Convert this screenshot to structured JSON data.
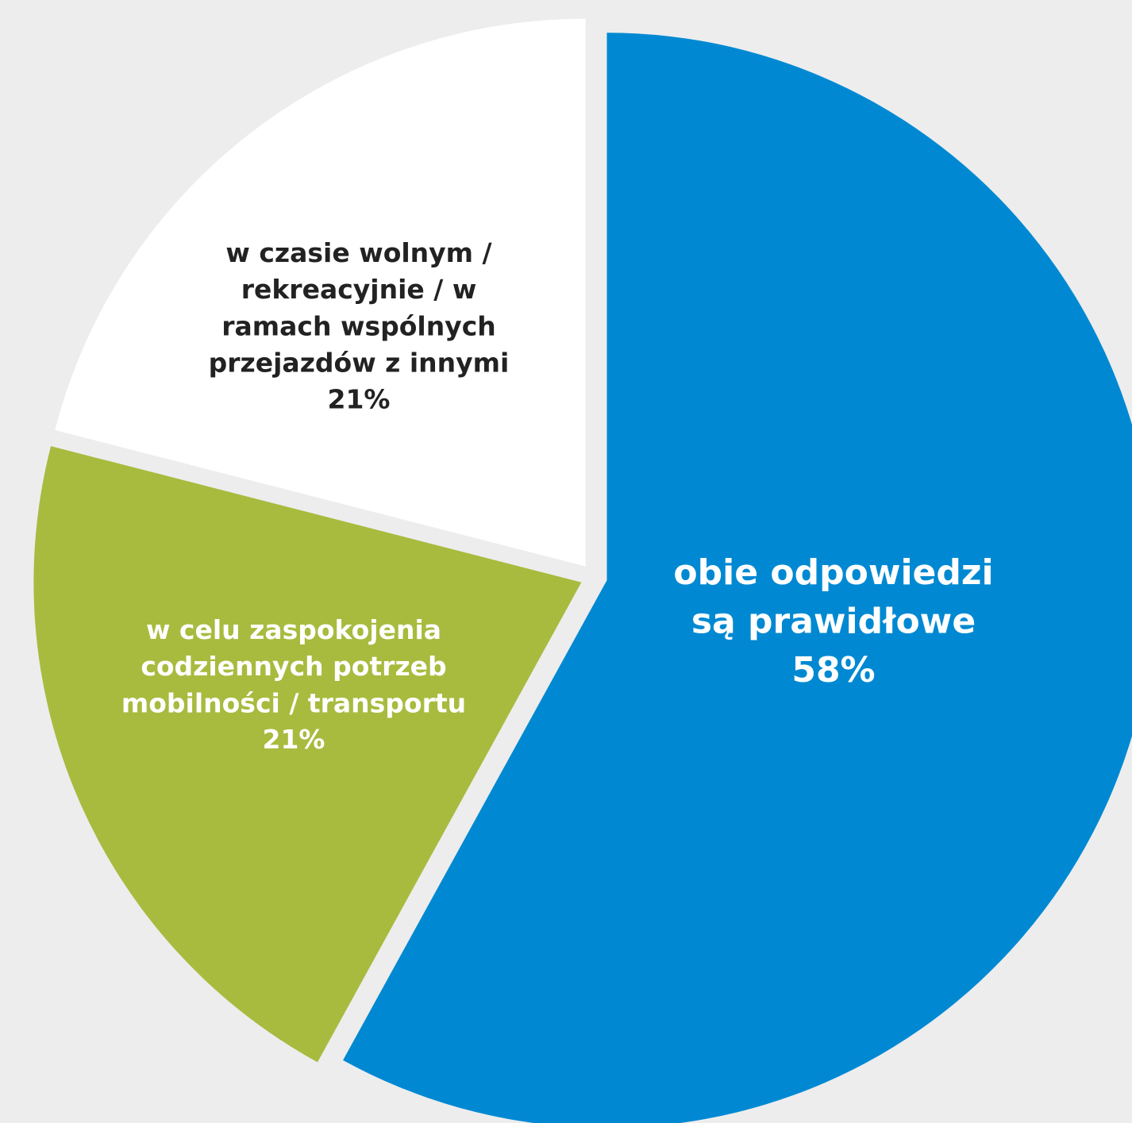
{
  "chart_data": {
    "type": "pie",
    "categories": [
      "obie odpowiedzi są prawidłowe",
      "w celu zaspokojenia codziennych potrzeb mobilności / transportu",
      "w czasie wolnym / rekreacyjnie / w ramach wspólnych przejazdów z innymi"
    ],
    "values": [
      58,
      21,
      21
    ],
    "value_labels": [
      "58%",
      "21%",
      "21%"
    ],
    "colors": [
      "#0089d2",
      "#a8bb3e",
      "#ffffff"
    ],
    "label_colors": [
      "#ffffff",
      "#ffffff",
      "#222222"
    ]
  }
}
